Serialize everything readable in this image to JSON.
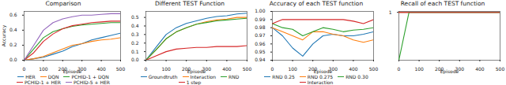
{
  "chart_data": [
    {
      "type": "line",
      "title": "Comparison",
      "xlabel": "Episode",
      "ylabel": "Accuracy",
      "x": [
        0,
        50,
        100,
        150,
        200,
        250,
        300,
        350,
        400,
        450,
        500
      ],
      "xlim": [
        0,
        500
      ],
      "xticks": [
        0,
        100,
        200,
        300,
        400,
        500
      ],
      "ylim": [
        0,
        0.65
      ],
      "yticks": [
        {
          "value": 0,
          "label": "0.0"
        },
        0.2,
        0.4,
        0.6
      ],
      "series": [
        {
          "name": "HER",
          "color": "#1f77b4",
          "values": [
            0,
            0.02,
            0.04,
            0.08,
            0.12,
            0.18,
            0.22,
            0.27,
            0.3,
            0.33,
            0.36
          ]
        },
        {
          "name": "DQN",
          "color": "#ff7f0e",
          "values": [
            0,
            0.02,
            0.05,
            0.1,
            0.15,
            0.2,
            0.22,
            0.25,
            0.27,
            0.28,
            0.3
          ]
        },
        {
          "name": "PCHID-1 + DQN",
          "color": "#2ca02c",
          "values": [
            0,
            0.15,
            0.3,
            0.38,
            0.42,
            0.45,
            0.47,
            0.48,
            0.49,
            0.5,
            0.5
          ]
        },
        {
          "name": "PCHID-1 + HER",
          "color": "#d62728",
          "values": [
            0,
            0.1,
            0.25,
            0.35,
            0.42,
            0.46,
            0.48,
            0.5,
            0.51,
            0.52,
            0.52
          ]
        },
        {
          "name": "PCHID-5 + HER",
          "color": "#9467bd",
          "values": [
            0,
            0.2,
            0.4,
            0.5,
            0.55,
            0.58,
            0.6,
            0.6,
            0.61,
            0.62,
            0.62
          ]
        }
      ]
    },
    {
      "type": "line",
      "title": "Different TEST Function",
      "xlabel": "Episode",
      "x": [
        0,
        50,
        100,
        150,
        200,
        250,
        300,
        350,
        400,
        450,
        500
      ],
      "xlim": [
        0,
        500
      ],
      "xticks": [
        0,
        100,
        200,
        300,
        400,
        500
      ],
      "ylim": [
        0,
        0.57
      ],
      "yticks": [
        {
          "value": 0,
          "label": "0.0"
        },
        0.1,
        0.2,
        0.3,
        0.4,
        0.5
      ],
      "series": [
        {
          "name": "Groundtruth",
          "color": "#1f77b4",
          "values": [
            0,
            0.15,
            0.3,
            0.38,
            0.43,
            0.46,
            0.49,
            0.51,
            0.52,
            0.54,
            0.55
          ]
        },
        {
          "name": "Interaction",
          "color": "#ff7f0e",
          "values": [
            0,
            0.12,
            0.25,
            0.33,
            0.38,
            0.42,
            0.45,
            0.47,
            0.48,
            0.5,
            0.5
          ]
        },
        {
          "name": "RND",
          "color": "#2ca02c",
          "values": [
            0,
            0.12,
            0.25,
            0.33,
            0.38,
            0.42,
            0.44,
            0.46,
            0.47,
            0.48,
            0.49
          ]
        },
        {
          "name": "1 step",
          "color": "#d62728",
          "values": [
            0,
            0.05,
            0.1,
            0.13,
            0.14,
            0.15,
            0.15,
            0.16,
            0.16,
            0.16,
            0.17
          ]
        }
      ]
    },
    {
      "type": "line",
      "title": "Accuracy of each TEST function",
      "xlabel": "Episode",
      "x": [
        0,
        50,
        100,
        150,
        200,
        250,
        300,
        350,
        400,
        450,
        500
      ],
      "xlim": [
        0,
        500
      ],
      "xticks": [
        0,
        100,
        200,
        300,
        400,
        500
      ],
      "ylim": [
        0.94,
        1
      ],
      "yticks": [
        0.94,
        0.95,
        0.96,
        0.97,
        0.98,
        0.99,
        {
          "value": 1,
          "label": "1.00"
        }
      ],
      "series": [
        {
          "name": "RND 0.25",
          "color": "#1f77b4",
          "values": [
            0.98,
            0.97,
            0.955,
            0.945,
            0.96,
            0.97,
            0.972,
            0.97,
            0.97,
            0.972,
            0.975
          ]
        },
        {
          "name": "RND 0.275",
          "color": "#ff7f0e",
          "values": [
            0.98,
            0.975,
            0.97,
            0.965,
            0.975,
            0.975,
            0.972,
            0.97,
            0.965,
            0.962,
            0.965
          ]
        },
        {
          "name": "RND 0.30",
          "color": "#2ca02c",
          "values": [
            0.985,
            0.98,
            0.978,
            0.97,
            0.975,
            0.98,
            0.978,
            0.975,
            0.977,
            0.978,
            0.98
          ]
        },
        {
          "name": "Interaction",
          "color": "#d62728",
          "values": [
            0.985,
            0.99,
            0.99,
            0.99,
            0.99,
            0.99,
            0.99,
            0.99,
            0.988,
            0.985,
            0.99
          ]
        }
      ]
    },
    {
      "type": "line",
      "title": "Recall of each TEST function",
      "xlabel": "Episode",
      "x": [
        0,
        50,
        100,
        150,
        200,
        250,
        300,
        350,
        400,
        450,
        500
      ],
      "xlim": [
        0,
        500
      ],
      "xticks": [
        0,
        100,
        200,
        300,
        400,
        500
      ],
      "ylim": [
        0,
        1.02
      ],
      "yticks": [
        1
      ],
      "series": [
        {
          "color": "#1f77b4",
          "values": [
            1,
            1,
            1,
            1,
            1,
            1,
            1,
            1,
            1,
            1,
            1
          ]
        },
        {
          "color": "#ff7f0e",
          "values": [
            1,
            1,
            1,
            1,
            1,
            1,
            1,
            1,
            1,
            1,
            1
          ]
        },
        {
          "color": "#2ca02c",
          "values": [
            0,
            1,
            1,
            1,
            1,
            1,
            1,
            1,
            1,
            1,
            1
          ]
        },
        {
          "color": "#d62728",
          "values": [
            1,
            1,
            1,
            1,
            1,
            1,
            1,
            1,
            1,
            1,
            1
          ]
        }
      ]
    }
  ]
}
